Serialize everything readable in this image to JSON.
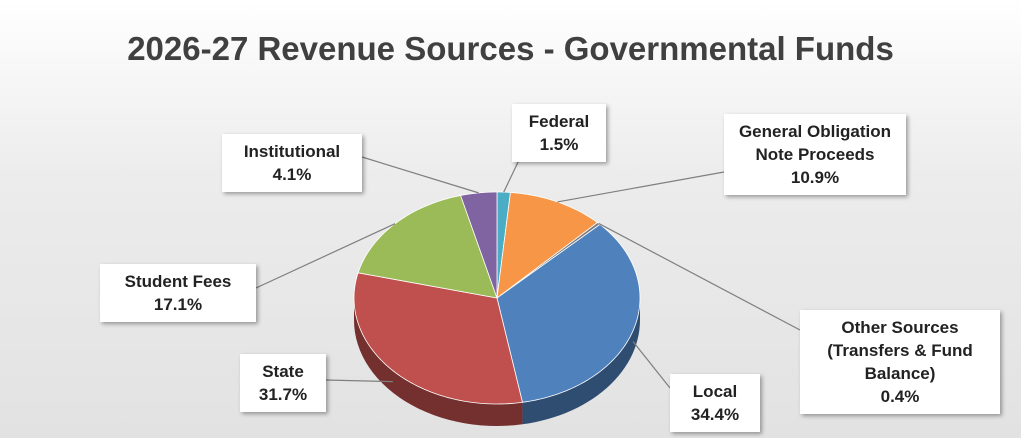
{
  "chart_data": {
    "type": "pie3d",
    "title": "2026-27 Revenue Sources - Governmental Funds",
    "categories": [
      "Federal",
      "General Obligation Note Proceeds",
      "Other Sources (Transfers & Fund Balance)",
      "Local",
      "State",
      "Student Fees",
      "Institutional"
    ],
    "values": [
      1.5,
      10.9,
      0.4,
      34.4,
      31.7,
      17.1,
      4.1
    ],
    "value_labels": [
      "1.5%",
      "10.9%",
      "0.4%",
      "34.4%",
      "31.7%",
      "17.1%",
      "4.1%"
    ],
    "colors": [
      "#4bacc6",
      "#f79646",
      "#7f7f7f",
      "#4f81bd",
      "#c0504d",
      "#9bbb59",
      "#8064a2"
    ]
  }
}
